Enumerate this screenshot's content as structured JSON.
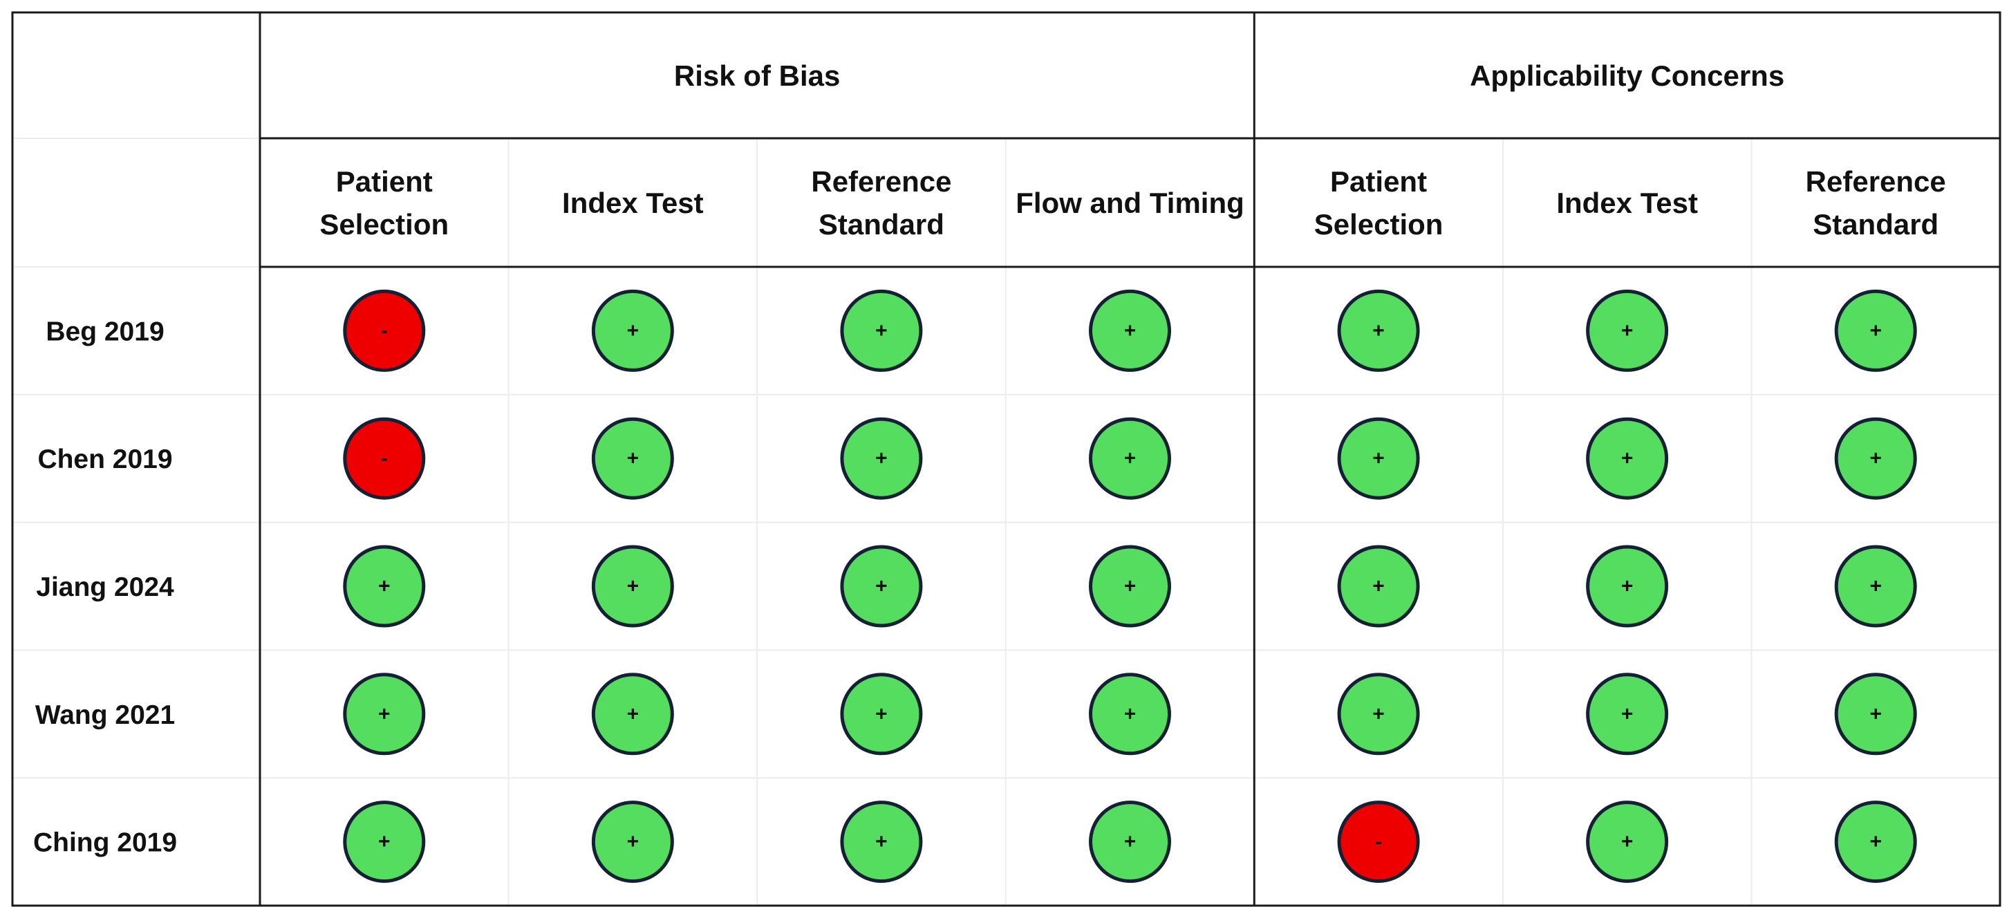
{
  "chart_data": {
    "type": "table",
    "groups": [
      {
        "label": "Risk of Bias",
        "columns": [
          "Patient Selection",
          "Index Test",
          "Reference Standard",
          "Flow and Timing"
        ]
      },
      {
        "label": "Applicability Concerns",
        "columns": [
          "Patient Selection",
          "Index Test",
          "Reference Standard"
        ]
      }
    ],
    "columns": [
      {
        "label_lines": [
          "Patient",
          "Selection"
        ]
      },
      {
        "label_lines": [
          "Index Test"
        ]
      },
      {
        "label_lines": [
          "Reference",
          "Standard"
        ]
      },
      {
        "label_lines": [
          "Flow and Timing"
        ]
      },
      {
        "label_lines": [
          "Patient",
          "Selection"
        ]
      },
      {
        "label_lines": [
          "Index Test"
        ]
      },
      {
        "label_lines": [
          "Reference",
          "Standard"
        ]
      }
    ],
    "rows": [
      {
        "study": "Beg 2019",
        "ratings": [
          "-",
          "+",
          "+",
          "+",
          "+",
          "+",
          "+"
        ]
      },
      {
        "study": "Chen 2019",
        "ratings": [
          "-",
          "+",
          "+",
          "+",
          "+",
          "+",
          "+"
        ]
      },
      {
        "study": "Jiang 2024",
        "ratings": [
          "+",
          "+",
          "+",
          "+",
          "+",
          "+",
          "+"
        ]
      },
      {
        "study": "Wang 2021",
        "ratings": [
          "+",
          "+",
          "+",
          "+",
          "+",
          "+",
          "+"
        ]
      },
      {
        "study": "Ching 2019",
        "ratings": [
          "+",
          "+",
          "+",
          "+",
          "-",
          "+",
          "+"
        ]
      }
    ],
    "rating_colors": {
      "+": "#55dd5f",
      "-": "#ee0000"
    },
    "circle_outline_color": "#142033"
  }
}
